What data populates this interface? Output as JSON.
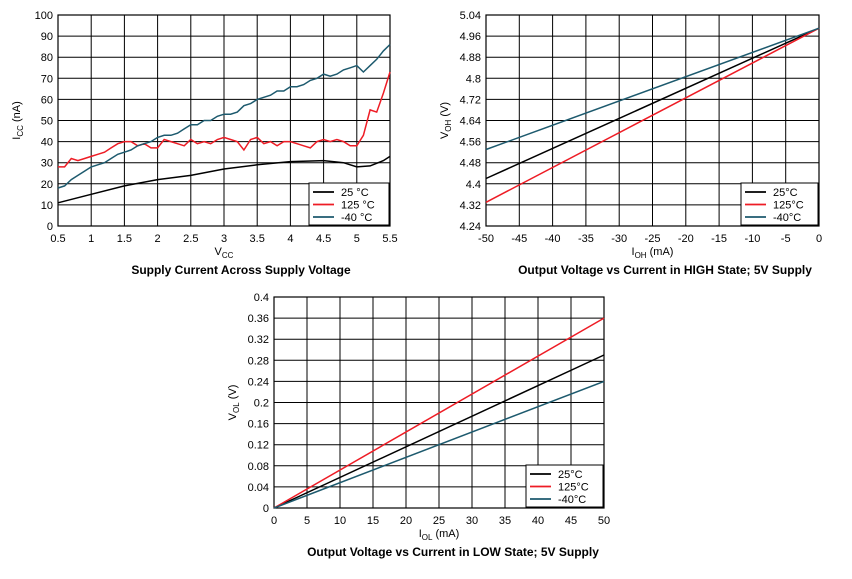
{
  "chart_data": [
    {
      "type": "line",
      "title": "Supply Current Across Supply Voltage",
      "xlabel": "V",
      "xlabel_sub": "CC",
      "xlabel_unit": "",
      "ylabel": "I",
      "ylabel_sub": "CC",
      "ylabel_unit": " (nA)",
      "xlim": [
        0.5,
        5.5
      ],
      "ylim": [
        0,
        100
      ],
      "xticks": [
        "0.5",
        "1",
        "1.5",
        "2",
        "2.5",
        "3",
        "3.5",
        "4",
        "4.5",
        "5",
        "5.5"
      ],
      "yticks": [
        "0",
        "10",
        "20",
        "30",
        "40",
        "50",
        "60",
        "70",
        "80",
        "90",
        "100"
      ],
      "grid": true,
      "legend": "bottom-right",
      "series": [
        {
          "name": "25 °C",
          "color": "#000000",
          "x": [
            0.5,
            1,
            1.5,
            2,
            2.5,
            3,
            3.5,
            4,
            4.5,
            4.8,
            5,
            5.2,
            5.4,
            5.5
          ],
          "values": [
            11,
            15,
            19,
            22,
            24,
            27,
            29,
            30.5,
            31,
            30,
            28,
            28.5,
            31,
            33
          ]
        },
        {
          "name": "125 °C",
          "color": "#ee1c25",
          "x": [
            0.5,
            0.6,
            0.7,
            0.8,
            0.9,
            1,
            1.1,
            1.2,
            1.3,
            1.4,
            1.5,
            1.6,
            1.7,
            1.8,
            1.9,
            2,
            2.1,
            2.2,
            2.3,
            2.4,
            2.5,
            2.6,
            2.7,
            2.8,
            2.9,
            3,
            3.1,
            3.2,
            3.3,
            3.4,
            3.5,
            3.6,
            3.7,
            3.8,
            3.9,
            4,
            4.1,
            4.2,
            4.3,
            4.4,
            4.5,
            4.6,
            4.7,
            4.8,
            4.9,
            5,
            5.1,
            5.2,
            5.3,
            5.4,
            5.5
          ],
          "values": [
            28,
            28,
            32,
            31,
            32,
            33,
            34,
            35,
            37,
            39,
            40,
            40,
            38,
            39,
            37,
            37,
            41,
            40,
            39,
            38,
            41,
            39,
            40,
            39,
            41,
            42,
            41,
            40,
            36,
            41,
            42,
            39,
            40,
            38,
            40,
            40,
            39,
            38,
            37,
            40,
            41,
            40,
            41,
            40,
            38,
            38,
            43,
            55,
            54,
            63,
            73
          ]
        },
        {
          "name": "-40 °C",
          "color": "#1d5a6e",
          "x": [
            0.5,
            0.6,
            0.7,
            0.8,
            0.9,
            1,
            1.1,
            1.2,
            1.3,
            1.4,
            1.5,
            1.6,
            1.7,
            1.8,
            1.9,
            2,
            2.1,
            2.2,
            2.3,
            2.4,
            2.5,
            2.6,
            2.7,
            2.8,
            2.9,
            3,
            3.1,
            3.2,
            3.3,
            3.4,
            3.5,
            3.6,
            3.7,
            3.8,
            3.9,
            4,
            4.1,
            4.2,
            4.3,
            4.4,
            4.5,
            4.6,
            4.7,
            4.8,
            4.9,
            5,
            5.1,
            5.2,
            5.3,
            5.4,
            5.5
          ],
          "values": [
            18,
            19,
            22,
            24,
            26,
            28,
            29,
            30,
            32,
            34,
            35,
            36,
            38,
            39,
            40,
            42,
            43,
            43,
            44,
            46,
            48,
            48,
            50,
            50,
            52,
            53,
            53,
            54,
            57,
            58,
            60,
            61,
            62,
            64,
            64,
            66,
            66,
            67,
            69,
            70,
            72,
            71,
            72,
            74,
            75,
            76,
            73,
            76,
            79,
            83,
            86
          ]
        }
      ]
    },
    {
      "type": "line",
      "title": "Output Voltage vs Current in HIGH State; 5V Supply",
      "xlabel": "I",
      "xlabel_sub": "OH",
      "xlabel_unit": " (mA)",
      "ylabel": "V",
      "ylabel_sub": "OH",
      "ylabel_unit": " (V)",
      "xlim": [
        -50,
        0
      ],
      "ylim": [
        4.24,
        5.04
      ],
      "xticks": [
        "-50",
        "-45",
        "-40",
        "-35",
        "-30",
        "-25",
        "-20",
        "-15",
        "-10",
        "-5",
        "0"
      ],
      "yticks": [
        "4.24",
        "4.32",
        "4.4",
        "4.48",
        "4.56",
        "4.64",
        "4.72",
        "4.8",
        "4.88",
        "4.96",
        "5.04"
      ],
      "grid": true,
      "legend": "bottom-right",
      "series": [
        {
          "name": "25°C",
          "color": "#000000",
          "x": [
            -50,
            0
          ],
          "values": [
            4.42,
            4.99
          ]
        },
        {
          "name": "125°C",
          "color": "#ee1c25",
          "x": [
            -50,
            0
          ],
          "values": [
            4.33,
            4.99
          ]
        },
        {
          "name": "-40°C",
          "color": "#1d5a6e",
          "x": [
            -50,
            0
          ],
          "values": [
            4.53,
            4.99
          ]
        }
      ]
    },
    {
      "type": "line",
      "title": "Output Voltage vs Current in LOW State; 5V Supply",
      "xlabel": "I",
      "xlabel_sub": "OL",
      "xlabel_unit": " (mA)",
      "ylabel": "V",
      "ylabel_sub": "OL",
      "ylabel_unit": " (V)",
      "xlim": [
        0,
        50
      ],
      "ylim": [
        0,
        0.4
      ],
      "xticks": [
        "0",
        "5",
        "10",
        "15",
        "20",
        "25",
        "30",
        "35",
        "40",
        "45",
        "50"
      ],
      "yticks": [
        "0",
        "0.04",
        "0.08",
        "0.12",
        "0.16",
        "0.2",
        "0.24",
        "0.28",
        "0.32",
        "0.36",
        "0.4"
      ],
      "grid": true,
      "legend": "bottom-right",
      "series": [
        {
          "name": "25°C",
          "color": "#000000",
          "x": [
            0,
            50
          ],
          "values": [
            0,
            0.29
          ]
        },
        {
          "name": "125°C",
          "color": "#ee1c25",
          "x": [
            0,
            50
          ],
          "values": [
            0,
            0.36
          ]
        },
        {
          "name": "-40°C",
          "color": "#1d5a6e",
          "x": [
            0,
            50
          ],
          "values": [
            0,
            0.24
          ]
        }
      ]
    }
  ]
}
